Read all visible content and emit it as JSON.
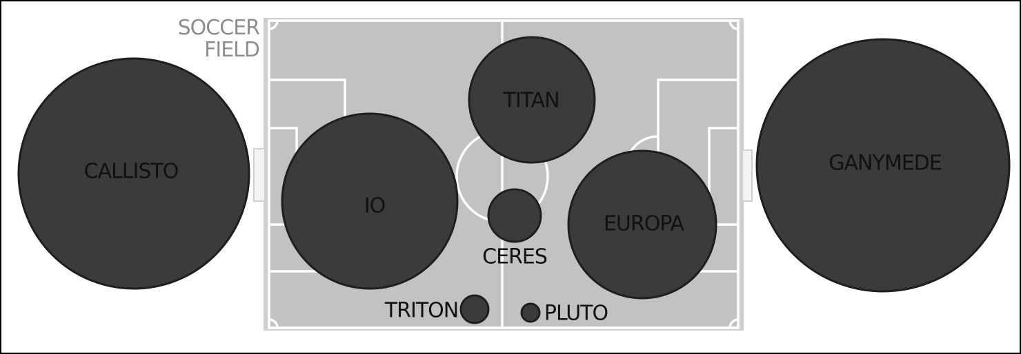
{
  "field": {
    "label_line1": "SOCCER",
    "label_line2": "FIELD",
    "grass_color": "#c2c2c2",
    "line_color": "#ffffff",
    "border_color": "#cfcfcf"
  },
  "bodies": [
    {
      "id": "callisto",
      "label": "CALLISTO"
    },
    {
      "id": "ganymede",
      "label": "GANYMEDE"
    },
    {
      "id": "titan",
      "label": "TITAN"
    },
    {
      "id": "io",
      "label": "IO"
    },
    {
      "id": "europa",
      "label": "EUROPA"
    },
    {
      "id": "ceres",
      "label": "CERES"
    },
    {
      "id": "triton",
      "label": "TRITON"
    },
    {
      "id": "pluto",
      "label": "PLUTO"
    }
  ],
  "body_color": "#3b3b3b"
}
